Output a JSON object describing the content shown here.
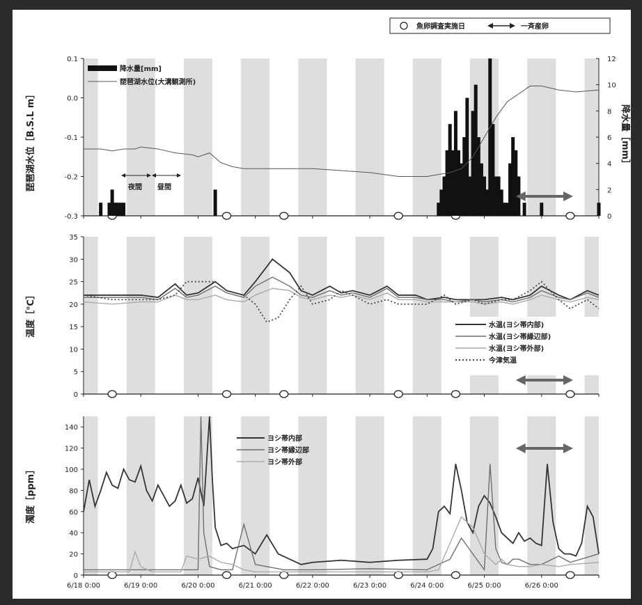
{
  "top_legend": {
    "survey_symbol_label": "魚卵調査実施日",
    "spawning_label": "一斉産卵"
  },
  "day_labels": [
    "6/18 0:00",
    "6/19 0:00",
    "6/20 0:00",
    "6/21 0:00",
    "6/22 0:00",
    "6/23 0:00",
    "6/24 0:00",
    "6/25 0:00",
    "6/26 0:00"
  ],
  "annotations": {
    "night_label": "夜間",
    "day_label": "昼間"
  },
  "colors": {
    "night_shade": "#dedede",
    "spawning_arrow": "#666666",
    "rain_bar": "#111111"
  },
  "chart_data": [
    {
      "type": "bar+line",
      "xlabel": "",
      "ylabel": "琵琶湖水位［B.S.L m］",
      "y2label": "降水量［mm］",
      "ylim": [
        -0.3,
        0.1
      ],
      "yticks": [
        "-0.3",
        "-0.2",
        "-0.1",
        "0.0",
        "0.1"
      ],
      "y2lim": [
        0,
        12
      ],
      "y2ticks": [
        "0",
        "2",
        "4",
        "6",
        "8",
        "10",
        "12"
      ],
      "x_days": [
        0,
        9
      ],
      "legend": [
        "降水量[mm]",
        "琵琶湖水位(大溝観測所)"
      ],
      "rain": {
        "name": "降水量[mm]",
        "x": [
          0.3,
          0.45,
          0.5,
          0.55,
          0.6,
          0.65,
          0.7,
          2.3,
          6.2,
          6.25,
          6.3,
          6.35,
          6.4,
          6.45,
          6.5,
          6.55,
          6.6,
          6.65,
          6.7,
          6.75,
          6.8,
          6.85,
          6.9,
          6.95,
          7.0,
          7.05,
          7.1,
          7.15,
          7.2,
          7.25,
          7.3,
          7.35,
          7.4,
          7.45,
          7.5,
          7.55,
          7.6,
          7.7,
          8.0,
          9.0
        ],
        "values": [
          1,
          1,
          2,
          1,
          1,
          1,
          1,
          2,
          1,
          2,
          3,
          5,
          7,
          5,
          8,
          5,
          4,
          6,
          9,
          3,
          8,
          10,
          6,
          4,
          3,
          2,
          12,
          7,
          3,
          3,
          2,
          1,
          1,
          4,
          6,
          5,
          3,
          1,
          1,
          1
        ]
      },
      "level": {
        "name": "琵琶湖水位(大溝観測所)",
        "x": [
          0,
          0.3,
          0.5,
          0.7,
          0.9,
          1.0,
          1.3,
          1.6,
          1.9,
          2.0,
          2.2,
          2.4,
          2.6,
          2.8,
          3.0,
          3.3,
          3.6,
          4.0,
          4.5,
          5.0,
          5.5,
          6.0,
          6.2,
          6.4,
          6.6,
          6.8,
          7.0,
          7.2,
          7.4,
          7.6,
          7.8,
          8.0,
          8.3,
          8.6,
          9.0
        ],
        "values": [
          -0.13,
          -0.13,
          -0.135,
          -0.13,
          -0.13,
          -0.125,
          -0.13,
          -0.14,
          -0.145,
          -0.15,
          -0.14,
          -0.165,
          -0.175,
          -0.18,
          -0.18,
          -0.18,
          -0.18,
          -0.18,
          -0.185,
          -0.19,
          -0.2,
          -0.2,
          -0.195,
          -0.19,
          -0.18,
          -0.15,
          -0.1,
          -0.05,
          -0.01,
          0.01,
          0.03,
          0.03,
          0.02,
          0.015,
          0.02
        ]
      }
    },
    {
      "type": "line",
      "ylabel": "温度［℃］",
      "ylim": [
        0,
        35
      ],
      "yticks": [
        "0",
        "5",
        "10",
        "15",
        "20",
        "25",
        "30",
        "35"
      ],
      "x_days": [
        0,
        9
      ],
      "series": [
        {
          "name": "水温(ヨシ帯内部)",
          "style": "solid-dark",
          "x": [
            0,
            0.5,
            1.0,
            1.3,
            1.6,
            1.8,
            2.0,
            2.3,
            2.5,
            2.8,
            3.0,
            3.3,
            3.6,
            3.8,
            4.0,
            4.3,
            4.5,
            4.7,
            5.0,
            5.3,
            5.5,
            5.8,
            6.0,
            6.3,
            6.5,
            6.8,
            7.0,
            7.3,
            7.5,
            7.8,
            8.0,
            8.3,
            8.5,
            8.8,
            9.0
          ],
          "values": [
            22,
            22,
            22,
            21.5,
            24.5,
            22,
            22.5,
            25,
            23,
            22,
            25,
            30,
            27,
            23,
            22,
            24,
            22.5,
            23,
            22,
            24,
            22,
            22,
            21,
            21.5,
            21,
            21,
            21,
            21.5,
            21,
            22,
            24,
            22,
            21,
            23,
            22
          ]
        },
        {
          "name": "水温(ヨシ帯縁辺部)",
          "style": "solid-mid",
          "x": [
            0,
            0.5,
            1.0,
            1.3,
            1.6,
            1.8,
            2.0,
            2.3,
            2.5,
            2.8,
            3.0,
            3.3,
            3.6,
            3.8,
            4.0,
            4.3,
            4.5,
            4.7,
            5.0,
            5.3,
            5.5,
            5.8,
            6.0,
            6.3,
            6.5,
            6.8,
            7.0,
            7.3,
            7.5,
            7.8,
            8.0,
            8.3,
            8.5,
            8.8,
            9.0
          ],
          "values": [
            21.5,
            21.5,
            21.5,
            21,
            23.5,
            21.5,
            22,
            24,
            22.5,
            21.5,
            24,
            26,
            24,
            22,
            21.5,
            23,
            22,
            22.5,
            21.5,
            23.5,
            21.5,
            21.5,
            21,
            21,
            20.5,
            21,
            20.5,
            21,
            20.5,
            21.5,
            23,
            21.5,
            21,
            22.5,
            21.5
          ]
        },
        {
          "name": "水温(ヨシ帯外部)",
          "style": "solid-light",
          "x": [
            0,
            0.5,
            1.0,
            1.3,
            1.6,
            1.8,
            2.0,
            2.3,
            2.5,
            2.8,
            3.0,
            3.3,
            3.6,
            3.8,
            4.0,
            4.3,
            4.5,
            4.7,
            5.0,
            5.3,
            5.5,
            5.8,
            6.0,
            6.3,
            6.5,
            6.8,
            7.0,
            7.3,
            7.5,
            7.8,
            8.0,
            8.3,
            8.5,
            8.8,
            9.0
          ],
          "values": [
            20.5,
            20,
            20.5,
            20.5,
            22,
            21,
            21,
            22,
            21,
            20.5,
            22,
            23.5,
            23,
            21.5,
            21,
            22,
            21.5,
            22,
            21,
            22.5,
            21,
            21,
            20.5,
            20.5,
            20.5,
            20.5,
            20,
            20.5,
            20,
            21,
            22,
            21,
            20.5,
            21.5,
            21
          ]
        },
        {
          "name": "今津気温",
          "style": "dotted",
          "x": [
            0,
            0.5,
            1.0,
            1.3,
            1.6,
            1.8,
            2.0,
            2.3,
            2.5,
            2.8,
            3.0,
            3.2,
            3.4,
            3.6,
            3.8,
            4.0,
            4.3,
            4.5,
            4.7,
            5.0,
            5.3,
            5.5,
            5.8,
            6.0,
            6.3,
            6.5,
            6.8,
            7.0,
            7.3,
            7.5,
            7.8,
            8.0,
            8.3,
            8.5,
            8.8,
            9.0
          ],
          "values": [
            22,
            21,
            21,
            21,
            22,
            25,
            25,
            25,
            23,
            22,
            20,
            16,
            17,
            21,
            24,
            20,
            21,
            23,
            22,
            20,
            21,
            20,
            20,
            20,
            22,
            20,
            21,
            20,
            21,
            21,
            23,
            25,
            21,
            19,
            21,
            19
          ]
        }
      ]
    },
    {
      "type": "line",
      "ylabel": "濁度［ppm］",
      "ylim": [
        0,
        150
      ],
      "yticks": [
        "0",
        "20",
        "40",
        "60",
        "80",
        "100",
        "120",
        "140"
      ],
      "x_days": [
        0,
        9
      ],
      "series": [
        {
          "name": "ヨシ帯内部",
          "style": "solid-dark",
          "x": [
            0,
            0.1,
            0.2,
            0.3,
            0.4,
            0.5,
            0.6,
            0.7,
            0.8,
            0.9,
            1.0,
            1.1,
            1.2,
            1.3,
            1.4,
            1.5,
            1.6,
            1.7,
            1.8,
            1.9,
            2.0,
            2.1,
            2.2,
            2.25,
            2.3,
            2.4,
            2.5,
            2.6,
            2.8,
            3.0,
            3.2,
            3.4,
            3.6,
            3.8,
            4.0,
            4.5,
            5.0,
            5.5,
            6.0,
            6.1,
            6.2,
            6.3,
            6.4,
            6.5,
            6.6,
            6.7,
            6.8,
            6.9,
            7.0,
            7.1,
            7.2,
            7.3,
            7.4,
            7.5,
            7.6,
            7.7,
            7.8,
            7.9,
            8.0,
            8.1,
            8.2,
            8.3,
            8.4,
            8.5,
            8.6,
            8.7,
            8.8,
            8.9,
            9.0
          ],
          "values": [
            60,
            90,
            65,
            80,
            97,
            85,
            82,
            100,
            90,
            88,
            103,
            80,
            70,
            85,
            75,
            65,
            70,
            85,
            68,
            72,
            92,
            65,
            150,
            90,
            45,
            28,
            30,
            25,
            28,
            20,
            38,
            20,
            15,
            10,
            12,
            14,
            12,
            14,
            15,
            25,
            60,
            65,
            58,
            105,
            80,
            50,
            40,
            65,
            75,
            68,
            55,
            40,
            35,
            30,
            40,
            32,
            35,
            30,
            28,
            105,
            50,
            25,
            20,
            20,
            18,
            30,
            65,
            55,
            20
          ]
        },
        {
          "name": "ヨシ帯縁辺部",
          "style": "solid-mid",
          "x": [
            0,
            0.5,
            1.0,
            1.5,
            1.8,
            2.0,
            2.05,
            2.1,
            2.2,
            2.4,
            2.6,
            2.8,
            3.0,
            3.2,
            3.5,
            4.0,
            5.0,
            6.0,
            6.2,
            6.4,
            6.6,
            6.8,
            7.0,
            7.1,
            7.2,
            7.3,
            7.4,
            7.5,
            7.6,
            7.8,
            8.0,
            8.3,
            8.5,
            9.0
          ],
          "values": [
            5,
            5,
            5,
            5,
            5,
            5,
            150,
            40,
            8,
            5,
            5,
            48,
            10,
            8,
            5,
            5,
            6,
            5,
            10,
            15,
            35,
            20,
            5,
            105,
            25,
            12,
            10,
            15,
            15,
            10,
            10,
            18,
            12,
            20
          ]
        },
        {
          "name": "ヨシ帯外部",
          "style": "solid-light",
          "x": [
            0,
            0.5,
            0.8,
            0.9,
            1.0,
            1.2,
            1.5,
            1.7,
            1.8,
            2.0,
            2.2,
            2.4,
            2.6,
            2.8,
            3.0,
            3.5,
            4.0,
            5.0,
            6.0,
            6.2,
            6.4,
            6.6,
            6.8,
            7.0,
            7.2,
            7.3,
            7.4,
            7.6,
            7.8,
            8.0,
            8.3,
            8.5,
            9.0
          ],
          "values": [
            3,
            3,
            3,
            22,
            8,
            3,
            3,
            3,
            18,
            15,
            18,
            12,
            10,
            5,
            3,
            3,
            3,
            3,
            3,
            5,
            30,
            55,
            45,
            20,
            10,
            15,
            10,
            8,
            8,
            10,
            8,
            10,
            12
          ]
        }
      ]
    }
  ]
}
